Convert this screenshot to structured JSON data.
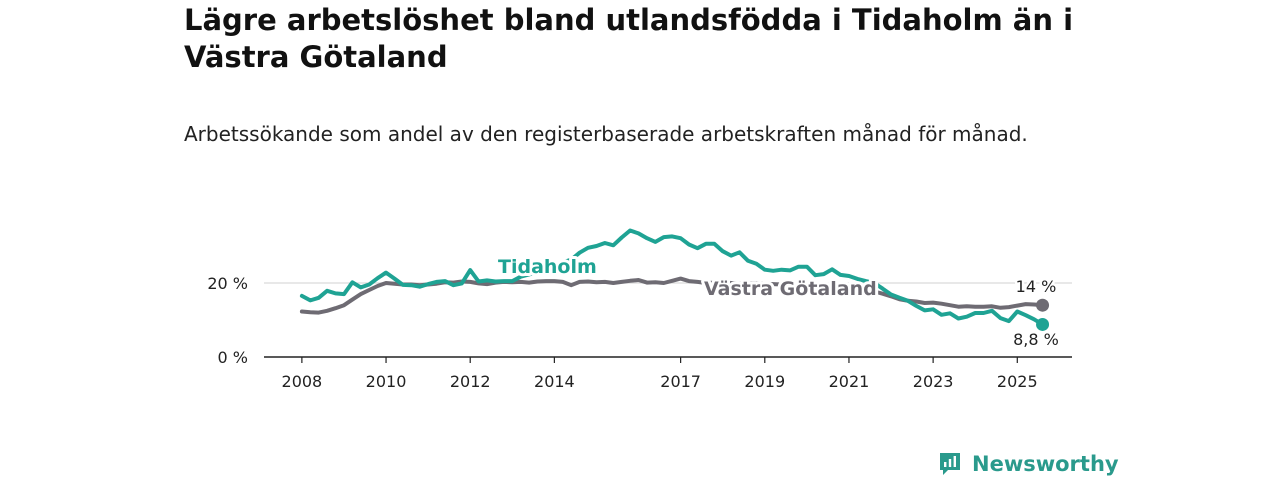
{
  "title": "Lägre arbetslöshet bland utlandsfödda i Tidaholm än i Västra Götaland",
  "subtitle": "Arbetssökande som andel av den registerbaserade arbetskraften månad för månad.",
  "brand": {
    "name": "Newsworthy",
    "icon": "newsworthy-logo-icon",
    "color": "#2a9a8c"
  },
  "chart_data": {
    "type": "line",
    "title": "Lägre arbetslöshet bland utlandsfödda i Tidaholm än i Västra Götaland",
    "subtitle": "Arbetssökande som andel av den registerbaserade arbetskraften månad för månad.",
    "xlabel": "",
    "ylabel": "",
    "x_ticks": [
      "2008",
      "2010",
      "2012",
      "2014",
      "2017",
      "2019",
      "2021",
      "2023",
      "2025"
    ],
    "x_tick_values": [
      2008,
      2010,
      2012,
      2014,
      2017,
      2019,
      2021,
      2023,
      2025
    ],
    "y_ticks": [
      "0 %",
      "20 %"
    ],
    "y_tick_values": [
      0,
      20
    ],
    "ylim": [
      0,
      35
    ],
    "xlim": [
      2007.1,
      2026.3
    ],
    "grid": "horizontal",
    "legend": "direct-labels",
    "series": [
      {
        "name": "Tidaholm",
        "color": "#1fa394",
        "end_label": "8,8 %",
        "points": [
          [
            2008.0,
            16.5
          ],
          [
            2008.2,
            15.3
          ],
          [
            2008.4,
            16.0
          ],
          [
            2008.6,
            17.9
          ],
          [
            2008.8,
            17.2
          ],
          [
            2009.0,
            17.0
          ],
          [
            2009.2,
            20.2
          ],
          [
            2009.4,
            18.8
          ],
          [
            2009.6,
            19.6
          ],
          [
            2009.8,
            21.3
          ],
          [
            2010.0,
            22.8
          ],
          [
            2010.2,
            21.2
          ],
          [
            2010.4,
            19.5
          ],
          [
            2010.6,
            19.4
          ],
          [
            2010.8,
            19.0
          ],
          [
            2011.0,
            19.7
          ],
          [
            2011.2,
            20.3
          ],
          [
            2011.4,
            20.5
          ],
          [
            2011.6,
            19.4
          ],
          [
            2011.8,
            19.9
          ],
          [
            2012.0,
            23.5
          ],
          [
            2012.2,
            20.4
          ],
          [
            2012.4,
            20.7
          ],
          [
            2012.6,
            20.4
          ],
          [
            2012.8,
            20.5
          ],
          [
            2013.0,
            20.5
          ],
          [
            2013.2,
            21.7
          ],
          [
            2013.4,
            22.3
          ],
          [
            2013.6,
            23.0
          ],
          [
            2013.8,
            24.0
          ],
          [
            2014.0,
            24.8
          ],
          [
            2014.2,
            25.6
          ],
          [
            2014.4,
            26.3
          ],
          [
            2014.6,
            28.2
          ],
          [
            2014.8,
            29.5
          ],
          [
            2015.0,
            30.0
          ],
          [
            2015.2,
            30.8
          ],
          [
            2015.4,
            30.2
          ],
          [
            2015.6,
            32.3
          ],
          [
            2015.8,
            34.2
          ],
          [
            2016.0,
            33.4
          ],
          [
            2016.2,
            32.1
          ],
          [
            2016.4,
            31.1
          ],
          [
            2016.6,
            32.4
          ],
          [
            2016.8,
            32.6
          ],
          [
            2017.0,
            32.1
          ],
          [
            2017.2,
            30.4
          ],
          [
            2017.4,
            29.4
          ],
          [
            2017.6,
            30.6
          ],
          [
            2017.8,
            30.6
          ],
          [
            2018.0,
            28.6
          ],
          [
            2018.2,
            27.4
          ],
          [
            2018.4,
            28.3
          ],
          [
            2018.6,
            26.0
          ],
          [
            2018.8,
            25.2
          ],
          [
            2019.0,
            23.6
          ],
          [
            2019.2,
            23.3
          ],
          [
            2019.4,
            23.6
          ],
          [
            2019.6,
            23.4
          ],
          [
            2019.8,
            24.4
          ],
          [
            2020.0,
            24.4
          ],
          [
            2020.2,
            22.1
          ],
          [
            2020.4,
            22.4
          ],
          [
            2020.6,
            23.7
          ],
          [
            2020.8,
            22.2
          ],
          [
            2021.0,
            21.9
          ],
          [
            2021.2,
            21.1
          ],
          [
            2021.4,
            20.5
          ],
          [
            2021.6,
            20.0
          ],
          [
            2021.8,
            18.5
          ],
          [
            2022.0,
            16.9
          ],
          [
            2022.2,
            16.0
          ],
          [
            2022.4,
            15.2
          ],
          [
            2022.6,
            13.8
          ],
          [
            2022.8,
            12.6
          ],
          [
            2023.0,
            12.9
          ],
          [
            2023.2,
            11.4
          ],
          [
            2023.4,
            11.8
          ],
          [
            2023.6,
            10.4
          ],
          [
            2023.8,
            10.9
          ],
          [
            2024.0,
            11.9
          ],
          [
            2024.2,
            11.9
          ],
          [
            2024.4,
            12.5
          ],
          [
            2024.6,
            10.5
          ],
          [
            2024.8,
            9.7
          ],
          [
            2025.0,
            12.3
          ],
          [
            2025.2,
            11.3
          ],
          [
            2025.4,
            10.2
          ],
          [
            2025.6,
            8.8
          ]
        ]
      },
      {
        "name": "Västra Götaland",
        "color": "#6e6b73",
        "end_label": "14 %",
        "points": [
          [
            2008.0,
            12.3
          ],
          [
            2008.2,
            12.1
          ],
          [
            2008.4,
            12.0
          ],
          [
            2008.6,
            12.5
          ],
          [
            2008.8,
            13.2
          ],
          [
            2009.0,
            14.0
          ],
          [
            2009.2,
            15.5
          ],
          [
            2009.4,
            17.0
          ],
          [
            2009.6,
            18.1
          ],
          [
            2009.8,
            19.2
          ],
          [
            2010.0,
            20.0
          ],
          [
            2010.2,
            19.8
          ],
          [
            2010.4,
            19.6
          ],
          [
            2010.6,
            19.6
          ],
          [
            2010.8,
            19.4
          ],
          [
            2011.0,
            19.6
          ],
          [
            2011.2,
            19.8
          ],
          [
            2011.4,
            20.2
          ],
          [
            2011.6,
            20.1
          ],
          [
            2011.8,
            20.4
          ],
          [
            2012.0,
            20.3
          ],
          [
            2012.2,
            19.9
          ],
          [
            2012.4,
            19.7
          ],
          [
            2012.6,
            20.1
          ],
          [
            2012.8,
            20.3
          ],
          [
            2013.0,
            20.2
          ],
          [
            2013.2,
            20.3
          ],
          [
            2013.4,
            20.1
          ],
          [
            2013.6,
            20.4
          ],
          [
            2013.8,
            20.5
          ],
          [
            2014.0,
            20.5
          ],
          [
            2014.2,
            20.3
          ],
          [
            2014.4,
            19.4
          ],
          [
            2014.6,
            20.3
          ],
          [
            2014.8,
            20.4
          ],
          [
            2015.0,
            20.2
          ],
          [
            2015.2,
            20.3
          ],
          [
            2015.4,
            20.0
          ],
          [
            2015.6,
            20.3
          ],
          [
            2015.8,
            20.6
          ],
          [
            2016.0,
            20.8
          ],
          [
            2016.2,
            20.1
          ],
          [
            2016.4,
            20.2
          ],
          [
            2016.6,
            20.0
          ],
          [
            2016.8,
            20.6
          ],
          [
            2017.0,
            21.2
          ],
          [
            2017.2,
            20.5
          ],
          [
            2017.4,
            20.3
          ],
          [
            2017.6,
            20.0
          ],
          [
            2017.8,
            20.1
          ],
          [
            2018.0,
            20.2
          ],
          [
            2018.2,
            20.0
          ],
          [
            2018.4,
            19.8
          ],
          [
            2018.6,
            19.9
          ],
          [
            2018.8,
            19.9
          ],
          [
            2019.0,
            19.8
          ],
          [
            2019.2,
            19.7
          ],
          [
            2019.4,
            19.6
          ],
          [
            2019.6,
            19.5
          ],
          [
            2019.8,
            19.5
          ],
          [
            2020.0,
            19.3
          ],
          [
            2020.2,
            19.2
          ],
          [
            2020.4,
            19.1
          ],
          [
            2020.6,
            18.9
          ],
          [
            2020.8,
            18.8
          ],
          [
            2021.0,
            18.6
          ],
          [
            2021.2,
            18.4
          ],
          [
            2021.4,
            18.1
          ],
          [
            2021.6,
            17.7
          ],
          [
            2021.8,
            17.1
          ],
          [
            2022.0,
            16.4
          ],
          [
            2022.2,
            15.6
          ],
          [
            2022.4,
            15.2
          ],
          [
            2022.6,
            15.0
          ],
          [
            2022.8,
            14.6
          ],
          [
            2023.0,
            14.7
          ],
          [
            2023.2,
            14.4
          ],
          [
            2023.4,
            14.0
          ],
          [
            2023.6,
            13.6
          ],
          [
            2023.8,
            13.7
          ],
          [
            2024.0,
            13.6
          ],
          [
            2024.2,
            13.6
          ],
          [
            2024.4,
            13.7
          ],
          [
            2024.6,
            13.3
          ],
          [
            2024.8,
            13.5
          ],
          [
            2025.0,
            13.9
          ],
          [
            2025.2,
            14.3
          ],
          [
            2025.4,
            14.2
          ],
          [
            2025.6,
            14.0
          ]
        ]
      }
    ]
  }
}
